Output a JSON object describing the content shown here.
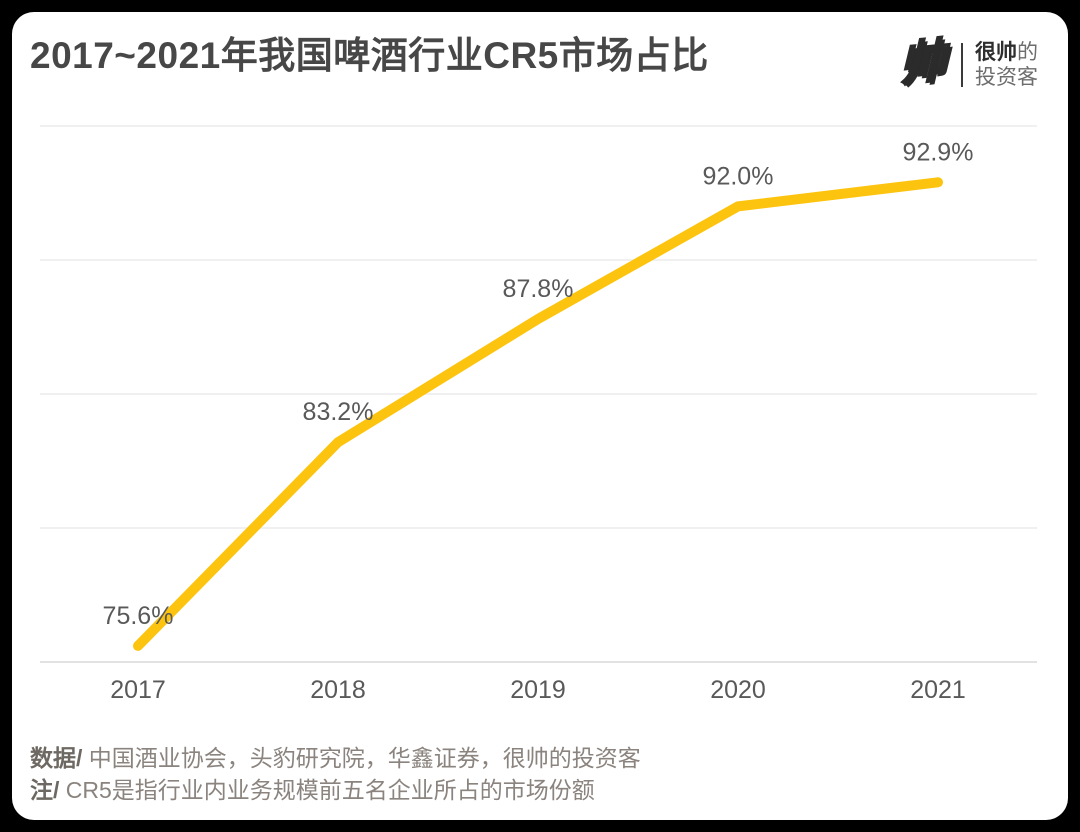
{
  "header": {
    "title": "2017~2021年我国啤酒行业CR5市场占比"
  },
  "logo": {
    "glyph": "帅",
    "name_line1_bold": "很帅",
    "name_line1_rest": "的",
    "name_line2": "投资客"
  },
  "chart_data": {
    "type": "line",
    "title": "2017~2021年我国啤酒行业CR5市场占比",
    "categories": [
      "2017",
      "2018",
      "2019",
      "2020",
      "2021"
    ],
    "values": [
      75.6,
      83.2,
      87.8,
      92.0,
      92.9
    ],
    "point_labels": [
      "75.6%",
      "83.2%",
      "87.8%",
      "92.0%",
      "92.9%"
    ],
    "xlabel": "",
    "ylabel": "",
    "ylim": [
      75,
      95
    ],
    "grid_step": 5,
    "grid": "horizontal only, no y tick labels",
    "legend": "none",
    "line_color": "#FCC40F",
    "grid_color": "#ececec",
    "axis_color": "#d9d9d9",
    "text_color": "#595959"
  },
  "footer": {
    "source_label": "数据/",
    "source_text": " 中国酒业协会，头豹研究院，华鑫证券，很帅的投资客",
    "note_label": "注/",
    "note_text": " CR5是指行业内业务规模前五名企业所占的市场份额"
  }
}
